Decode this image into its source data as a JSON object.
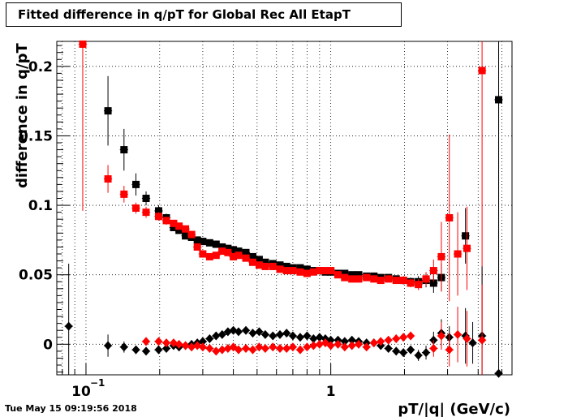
{
  "timestamp": "Tue May 15 09:19:56 2018",
  "chart_data": {
    "type": "scatter",
    "title": "Fitted difference in q/pT for Global Rec All EtapT",
    "xlabel": "pT/|q| (GeV/c)",
    "ylabel": "difference in q/pT",
    "x_scale": "log",
    "xlim": [
      0.076,
      5.5
    ],
    "ylim": [
      -0.022,
      0.218
    ],
    "grid": true,
    "x_major_ticks": [
      {
        "value": 0.1,
        "label": "10",
        "exp": "−1"
      },
      {
        "value": 1,
        "label": "1"
      }
    ],
    "y_major_ticks": [
      {
        "value": 0,
        "label": "0"
      },
      {
        "value": 0.05,
        "label": "0.05"
      },
      {
        "value": 0.1,
        "label": "0.1"
      },
      {
        "value": 0.15,
        "label": "0.15"
      },
      {
        "value": 0.2,
        "label": "0.2"
      }
    ],
    "colors": {
      "black": "#000000",
      "red": "#ff0000"
    },
    "series": [
      {
        "marker": "square",
        "color": "#000000",
        "points": [
          [
            0.123,
            0.168,
            0.025
          ],
          [
            0.143,
            0.14,
            0.015
          ],
          [
            0.16,
            0.115,
            0.008
          ],
          [
            0.176,
            0.105,
            0.005
          ],
          [
            0.198,
            0.096,
            0.004
          ],
          [
            0.213,
            0.091,
            0.003
          ],
          [
            0.228,
            0.084,
            0.002
          ],
          [
            0.24,
            0.082,
            0.002
          ],
          [
            0.255,
            0.078,
            0.002
          ],
          [
            0.27,
            0.077,
            0.002
          ],
          [
            0.285,
            0.075,
            0.002
          ],
          [
            0.3,
            0.074,
            0.002
          ],
          [
            0.32,
            0.073,
            0.002
          ],
          [
            0.34,
            0.072,
            0.002
          ],
          [
            0.36,
            0.07,
            0.002
          ],
          [
            0.38,
            0.069,
            0.002
          ],
          [
            0.4,
            0.068,
            0.002
          ],
          [
            0.42,
            0.067,
            0.002
          ],
          [
            0.45,
            0.066,
            0.002
          ],
          [
            0.48,
            0.063,
            0.002
          ],
          [
            0.51,
            0.061,
            0.002
          ],
          [
            0.54,
            0.059,
            0.002
          ],
          [
            0.58,
            0.058,
            0.002
          ],
          [
            0.62,
            0.057,
            0.002
          ],
          [
            0.66,
            0.056,
            0.002
          ],
          [
            0.7,
            0.055,
            0.002
          ],
          [
            0.75,
            0.055,
            0.002
          ],
          [
            0.8,
            0.054,
            0.002
          ],
          [
            0.85,
            0.053,
            0.002
          ],
          [
            0.9,
            0.053,
            0.002
          ],
          [
            0.95,
            0.052,
            0.002
          ],
          [
            1.0,
            0.052,
            0.002
          ],
          [
            1.07,
            0.051,
            0.002
          ],
          [
            1.14,
            0.051,
            0.002
          ],
          [
            1.22,
            0.05,
            0.002
          ],
          [
            1.3,
            0.05,
            0.002
          ],
          [
            1.4,
            0.049,
            0.002
          ],
          [
            1.5,
            0.049,
            0.002
          ],
          [
            1.6,
            0.048,
            0.002
          ],
          [
            1.72,
            0.048,
            0.002
          ],
          [
            1.85,
            0.047,
            0.002
          ],
          [
            1.98,
            0.046,
            0.003
          ],
          [
            2.12,
            0.045,
            0.003
          ],
          [
            2.28,
            0.045,
            0.004
          ],
          [
            2.45,
            0.046,
            0.005
          ],
          [
            2.63,
            0.044,
            0.007
          ],
          [
            2.83,
            0.048,
            0.01
          ],
          [
            3.55,
            0.078,
            0.02
          ],
          [
            4.85,
            0.176,
            0.18
          ]
        ]
      },
      {
        "marker": "square",
        "color": "#ff0000",
        "points": [
          [
            0.097,
            0.216,
            0.12
          ],
          [
            0.123,
            0.119,
            0.01
          ],
          [
            0.143,
            0.108,
            0.006
          ],
          [
            0.16,
            0.098,
            0.004
          ],
          [
            0.176,
            0.095,
            0.004
          ],
          [
            0.198,
            0.092,
            0.003
          ],
          [
            0.213,
            0.089,
            0.003
          ],
          [
            0.228,
            0.087,
            0.002
          ],
          [
            0.24,
            0.085,
            0.002
          ],
          [
            0.255,
            0.083,
            0.002
          ],
          [
            0.27,
            0.079,
            0.002
          ],
          [
            0.285,
            0.07,
            0.002
          ],
          [
            0.3,
            0.065,
            0.002
          ],
          [
            0.32,
            0.063,
            0.002
          ],
          [
            0.34,
            0.064,
            0.002
          ],
          [
            0.36,
            0.067,
            0.002
          ],
          [
            0.38,
            0.066,
            0.002
          ],
          [
            0.4,
            0.063,
            0.002
          ],
          [
            0.42,
            0.064,
            0.002
          ],
          [
            0.45,
            0.062,
            0.002
          ],
          [
            0.48,
            0.059,
            0.002
          ],
          [
            0.51,
            0.057,
            0.002
          ],
          [
            0.54,
            0.056,
            0.002
          ],
          [
            0.58,
            0.056,
            0.002
          ],
          [
            0.62,
            0.054,
            0.002
          ],
          [
            0.66,
            0.053,
            0.002
          ],
          [
            0.7,
            0.053,
            0.002
          ],
          [
            0.75,
            0.052,
            0.002
          ],
          [
            0.8,
            0.051,
            0.002
          ],
          [
            0.85,
            0.052,
            0.002
          ],
          [
            0.9,
            0.053,
            0.002
          ],
          [
            0.95,
            0.053,
            0.002
          ],
          [
            1.0,
            0.053,
            0.002
          ],
          [
            1.07,
            0.05,
            0.002
          ],
          [
            1.14,
            0.048,
            0.002
          ],
          [
            1.22,
            0.047,
            0.002
          ],
          [
            1.3,
            0.047,
            0.002
          ],
          [
            1.4,
            0.048,
            0.002
          ],
          [
            1.5,
            0.047,
            0.002
          ],
          [
            1.6,
            0.046,
            0.002
          ],
          [
            1.72,
            0.047,
            0.002
          ],
          [
            1.85,
            0.046,
            0.002
          ],
          [
            1.98,
            0.046,
            0.003
          ],
          [
            2.12,
            0.044,
            0.003
          ],
          [
            2.28,
            0.043,
            0.004
          ],
          [
            2.45,
            0.047,
            0.005
          ],
          [
            2.63,
            0.053,
            0.008
          ],
          [
            2.83,
            0.063,
            0.025
          ],
          [
            3.05,
            0.091,
            0.06
          ],
          [
            3.3,
            0.065,
            0.03
          ],
          [
            3.6,
            0.069,
            0.03
          ],
          [
            4.15,
            0.197,
            0.2
          ]
        ]
      },
      {
        "marker": "diamond",
        "color": "#000000",
        "points": [
          [
            0.085,
            0.013,
            0.045
          ],
          [
            0.123,
            -0.001,
            0.008
          ],
          [
            0.143,
            -0.002,
            0.004
          ],
          [
            0.16,
            -0.004,
            0.003
          ],
          [
            0.176,
            -0.005,
            0.002
          ],
          [
            0.198,
            -0.004,
            0.002
          ],
          [
            0.213,
            -0.003,
            0.002
          ],
          [
            0.228,
            -0.001,
            0.002
          ],
          [
            0.24,
            -0.002,
            0.002
          ],
          [
            0.255,
            -0.001,
            0.002
          ],
          [
            0.27,
            0.0,
            0.002
          ],
          [
            0.285,
            0.001,
            0.002
          ],
          [
            0.3,
            0.002,
            0.002
          ],
          [
            0.32,
            0.004,
            0.002
          ],
          [
            0.34,
            0.006,
            0.002
          ],
          [
            0.36,
            0.007,
            0.002
          ],
          [
            0.38,
            0.009,
            0.002
          ],
          [
            0.4,
            0.01,
            0.002
          ],
          [
            0.42,
            0.009,
            0.002
          ],
          [
            0.45,
            0.01,
            0.002
          ],
          [
            0.48,
            0.008,
            0.002
          ],
          [
            0.51,
            0.009,
            0.002
          ],
          [
            0.54,
            0.007,
            0.002
          ],
          [
            0.58,
            0.006,
            0.002
          ],
          [
            0.62,
            0.007,
            0.002
          ],
          [
            0.66,
            0.008,
            0.002
          ],
          [
            0.7,
            0.006,
            0.002
          ],
          [
            0.75,
            0.005,
            0.002
          ],
          [
            0.8,
            0.006,
            0.002
          ],
          [
            0.85,
            0.004,
            0.002
          ],
          [
            0.9,
            0.005,
            0.002
          ],
          [
            0.95,
            0.004,
            0.002
          ],
          [
            1.0,
            0.003,
            0.002
          ],
          [
            1.07,
            0.003,
            0.002
          ],
          [
            1.14,
            0.002,
            0.002
          ],
          [
            1.22,
            0.003,
            0.002
          ],
          [
            1.3,
            0.002,
            0.002
          ],
          [
            1.4,
            0.001,
            0.002
          ],
          [
            1.5,
            0.001,
            0.002
          ],
          [
            1.6,
            -0.001,
            0.002
          ],
          [
            1.72,
            -0.003,
            0.002
          ],
          [
            1.85,
            -0.005,
            0.003
          ],
          [
            1.98,
            -0.006,
            0.003
          ],
          [
            2.12,
            -0.004,
            0.003
          ],
          [
            2.28,
            -0.008,
            0.004
          ],
          [
            2.45,
            -0.006,
            0.005
          ],
          [
            2.63,
            0.003,
            0.006
          ],
          [
            2.83,
            0.008,
            0.01
          ],
          [
            3.05,
            0.005,
            0.008
          ],
          [
            3.55,
            0.006,
            0.02
          ],
          [
            3.8,
            0.001,
            0.015
          ],
          [
            4.15,
            0.006,
            0.05
          ],
          [
            4.85,
            -0.021,
            0.2
          ]
        ]
      },
      {
        "marker": "diamond",
        "color": "#ff0000",
        "points": [
          [
            0.176,
            0.002,
            0.003
          ],
          [
            0.198,
            0.002,
            0.002
          ],
          [
            0.213,
            0.001,
            0.002
          ],
          [
            0.228,
            0.001,
            0.002
          ],
          [
            0.24,
            0.0,
            0.002
          ],
          [
            0.255,
            -0.001,
            0.002
          ],
          [
            0.27,
            -0.002,
            0.002
          ],
          [
            0.285,
            -0.001,
            0.002
          ],
          [
            0.3,
            -0.002,
            0.002
          ],
          [
            0.32,
            -0.003,
            0.002
          ],
          [
            0.34,
            -0.005,
            0.002
          ],
          [
            0.36,
            -0.004,
            0.002
          ],
          [
            0.38,
            -0.003,
            0.002
          ],
          [
            0.4,
            -0.002,
            0.002
          ],
          [
            0.42,
            -0.004,
            0.002
          ],
          [
            0.45,
            -0.003,
            0.002
          ],
          [
            0.48,
            -0.004,
            0.002
          ],
          [
            0.51,
            -0.002,
            0.002
          ],
          [
            0.54,
            -0.003,
            0.002
          ],
          [
            0.58,
            -0.002,
            0.002
          ],
          [
            0.62,
            -0.003,
            0.002
          ],
          [
            0.66,
            -0.003,
            0.002
          ],
          [
            0.7,
            -0.002,
            0.002
          ],
          [
            0.75,
            -0.004,
            0.002
          ],
          [
            0.8,
            -0.002,
            0.002
          ],
          [
            0.85,
            -0.001,
            0.002
          ],
          [
            0.9,
            0.0,
            0.002
          ],
          [
            0.95,
            0.001,
            0.002
          ],
          [
            1.0,
            -0.001,
            0.002
          ],
          [
            1.07,
            0.0,
            0.002
          ],
          [
            1.14,
            -0.002,
            0.002
          ],
          [
            1.22,
            -0.001,
            0.002
          ],
          [
            1.3,
            0.0,
            0.002
          ],
          [
            1.4,
            -0.002,
            0.002
          ],
          [
            1.5,
            0.001,
            0.002
          ],
          [
            1.6,
            0.002,
            0.002
          ],
          [
            1.72,
            0.003,
            0.002
          ],
          [
            1.85,
            0.004,
            0.003
          ],
          [
            1.98,
            0.005,
            0.003
          ],
          [
            2.12,
            0.006,
            0.003
          ],
          [
            2.63,
            -0.003,
            0.006
          ],
          [
            2.83,
            0.006,
            0.01
          ],
          [
            3.05,
            -0.004,
            0.012
          ],
          [
            3.3,
            0.007,
            0.02
          ],
          [
            3.6,
            0.004,
            0.02
          ],
          [
            4.15,
            0.003,
            0.04
          ]
        ]
      }
    ]
  }
}
